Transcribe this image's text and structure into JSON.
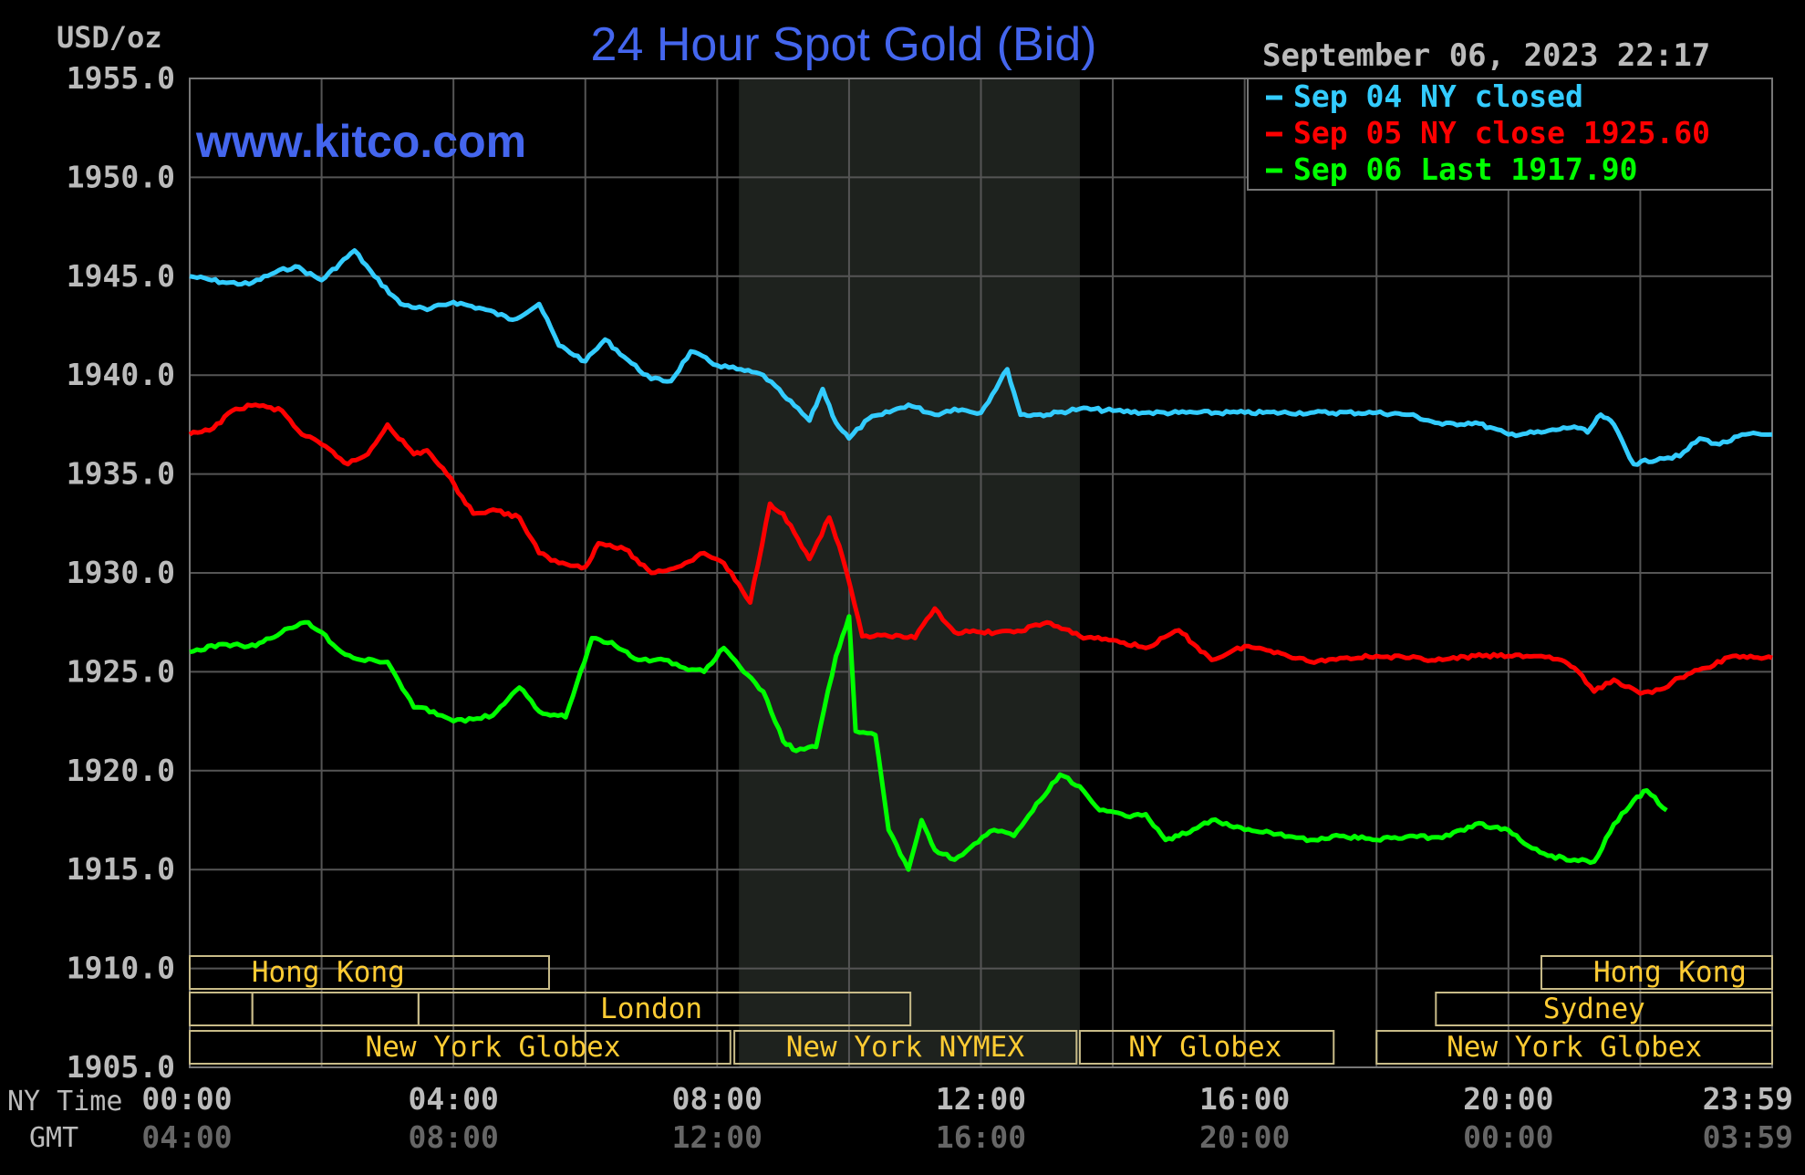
{
  "chart_data": {
    "type": "line",
    "title": "24 Hour Spot Gold (Bid)",
    "ylabel": "USD/oz",
    "website": "www.kitco.com",
    "timestamp": "September 06, 2023 22:17",
    "ylim": [
      1905.0,
      1955.0
    ],
    "y_ticks": [
      "1955.0",
      "1950.0",
      "1945.0",
      "1940.0",
      "1935.0",
      "1930.0",
      "1925.0",
      "1920.0",
      "1915.0",
      "1910.0",
      "1905.0"
    ],
    "xlim": [
      0,
      24
    ],
    "x_row_labels": {
      "ny": "NY Time",
      "gmt": "GMT"
    },
    "x_ticks_ny": [
      "00:00",
      "04:00",
      "08:00",
      "12:00",
      "16:00",
      "20:00",
      "23:59"
    ],
    "x_ticks_gmt": [
      "04:00",
      "08:00",
      "12:00",
      "16:00",
      "20:00",
      "00:00",
      "03:59"
    ],
    "x_tick_hours": [
      0,
      4,
      8,
      12,
      16,
      20,
      24
    ],
    "grid": true,
    "legend_placement": "top-right",
    "highlight_band_hours": [
      8.33,
      13.5
    ],
    "series": [
      {
        "name": "Sep 04 NY closed",
        "color": "#33ccff",
        "x": [
          0,
          0.5,
          0.9,
          1.3,
          1.6,
          2.0,
          2.5,
          2.8,
          3.2,
          3.6,
          4.0,
          4.5,
          4.9,
          5.3,
          5.6,
          6.0,
          6.3,
          6.7,
          7.0,
          7.3,
          7.6,
          8.0,
          8.3,
          8.7,
          9.0,
          9.4,
          9.6,
          9.8,
          10.0,
          10.3,
          10.5,
          10.9,
          11.3,
          11.6,
          12.0,
          12.4,
          12.6,
          12.8,
          13.0,
          13.5,
          14.0,
          14.5,
          15.0,
          16.0,
          17.0,
          18.0,
          18.5,
          19.0,
          19.5,
          20.0,
          20.5,
          21.0,
          21.2,
          21.4,
          21.6,
          21.9,
          22.3,
          22.6,
          22.9,
          23.2,
          23.6,
          24.0
        ],
        "values": [
          1945.0,
          1944.7,
          1944.6,
          1945.2,
          1945.5,
          1944.8,
          1946.3,
          1945.0,
          1943.6,
          1943.3,
          1943.7,
          1943.3,
          1942.8,
          1943.6,
          1941.5,
          1940.7,
          1941.8,
          1940.6,
          1939.8,
          1939.7,
          1941.2,
          1940.5,
          1940.3,
          1940.0,
          1939.0,
          1937.7,
          1939.3,
          1937.6,
          1936.8,
          1937.8,
          1938.0,
          1938.5,
          1938.0,
          1938.3,
          1938.1,
          1940.3,
          1938.0,
          1938.0,
          1938.0,
          1938.3,
          1938.2,
          1938.1,
          1938.1,
          1938.1,
          1938.1,
          1938.1,
          1938.0,
          1937.5,
          1937.6,
          1937.0,
          1937.1,
          1937.4,
          1937.1,
          1938.0,
          1937.5,
          1935.5,
          1935.8,
          1935.9,
          1936.8,
          1936.5,
          1937.0,
          1937.0
        ]
      },
      {
        "name": "Sep 05 NY close 1925.60",
        "color": "#ff0000",
        "x": [
          0,
          0.3,
          0.7,
          1.0,
          1.4,
          1.7,
          2.0,
          2.4,
          2.7,
          3.0,
          3.4,
          3.6,
          3.9,
          4.3,
          4.6,
          5.0,
          5.3,
          5.6,
          6.0,
          6.2,
          6.6,
          7.0,
          7.4,
          7.8,
          8.1,
          8.5,
          8.8,
          9.0,
          9.4,
          9.7,
          9.9,
          10.2,
          10.6,
          11.0,
          11.3,
          11.6,
          12.0,
          12.5,
          13.0,
          13.5,
          14.0,
          14.5,
          15.0,
          15.5,
          16.0,
          16.5,
          17.0,
          17.5,
          18.0,
          18.5,
          19.0,
          19.5,
          20.0,
          20.5,
          20.8,
          21.0,
          21.3,
          21.6,
          22.0,
          22.3,
          22.6,
          23.0,
          23.4,
          24.0
        ],
        "values": [
          1937.0,
          1937.2,
          1938.3,
          1938.5,
          1938.2,
          1937.0,
          1936.5,
          1935.5,
          1936.0,
          1937.5,
          1936.0,
          1936.2,
          1935.0,
          1933.0,
          1933.2,
          1932.8,
          1931.0,
          1930.5,
          1930.3,
          1931.5,
          1931.2,
          1930.0,
          1930.3,
          1931.0,
          1930.5,
          1928.5,
          1933.5,
          1933.0,
          1930.7,
          1932.8,
          1930.8,
          1926.8,
          1926.8,
          1926.7,
          1928.2,
          1927.0,
          1927.0,
          1927.0,
          1927.5,
          1926.8,
          1926.6,
          1926.2,
          1927.1,
          1925.6,
          1926.3,
          1926.0,
          1925.5,
          1925.7,
          1925.8,
          1925.7,
          1925.6,
          1925.8,
          1925.8,
          1925.8,
          1925.6,
          1925.2,
          1924.0,
          1924.6,
          1923.9,
          1924.1,
          1924.7,
          1925.2,
          1925.8,
          1925.7
        ]
      },
      {
        "name": "Sep 06 Last 1917.90",
        "color": "#00ff00",
        "x": [
          0,
          0.5,
          1.0,
          1.5,
          1.8,
          2.0,
          2.3,
          2.6,
          3.0,
          3.4,
          3.7,
          4.0,
          4.3,
          4.6,
          5.0,
          5.3,
          5.7,
          6.1,
          6.4,
          6.8,
          7.2,
          7.5,
          7.8,
          8.1,
          8.4,
          8.7,
          9.0,
          9.2,
          9.5,
          9.8,
          10.0,
          10.1,
          10.4,
          10.6,
          10.9,
          11.1,
          11.3,
          11.6,
          11.9,
          12.2,
          12.5,
          12.9,
          13.2,
          13.5,
          13.8,
          14.2,
          14.5,
          14.8,
          15.0,
          15.5,
          16.0,
          16.5,
          17.0,
          17.5,
          18.0,
          18.5,
          19.0,
          19.5,
          20.0,
          20.3,
          20.6,
          21.0,
          21.3,
          21.6,
          21.9,
          22.1,
          22.4
        ],
        "values": [
          1926.0,
          1926.4,
          1926.3,
          1927.2,
          1927.5,
          1927.0,
          1926.0,
          1925.6,
          1925.5,
          1923.2,
          1923.0,
          1922.5,
          1922.6,
          1922.8,
          1924.2,
          1923.0,
          1922.7,
          1926.7,
          1926.5,
          1925.6,
          1925.6,
          1925.2,
          1925.0,
          1926.2,
          1925.0,
          1924.0,
          1921.5,
          1921.0,
          1921.2,
          1925.8,
          1927.8,
          1922.0,
          1921.8,
          1917.0,
          1915.0,
          1917.5,
          1916.0,
          1915.5,
          1916.3,
          1917.0,
          1916.7,
          1918.5,
          1919.8,
          1919.2,
          1918.0,
          1917.7,
          1917.8,
          1916.5,
          1916.7,
          1917.5,
          1917.0,
          1916.8,
          1916.5,
          1916.7,
          1916.5,
          1916.7,
          1916.6,
          1917.3,
          1917.0,
          1916.2,
          1915.7,
          1915.5,
          1915.4,
          1917.3,
          1918.5,
          1919.0,
          1918.0
        ]
      }
    ],
    "sessions": [
      {
        "label": "Hong Kong",
        "row": 0,
        "start": 0,
        "end": 5.45,
        "text_center": 2.1
      },
      {
        "label": "",
        "row": 1,
        "start": 0,
        "end": 0.95
      },
      {
        "label": "",
        "row": 1,
        "start": 0.95,
        "end": 3.47
      },
      {
        "label": "London",
        "row": 1,
        "start": 3.47,
        "end": 10.93,
        "text_center": 7.0
      },
      {
        "label": "",
        "row": 2,
        "start": 0,
        "end": 6.0
      },
      {
        "label": "New York Globex",
        "row": 2,
        "start": 0,
        "end": 8.2,
        "text_center": 4.6
      },
      {
        "label": "New York NYMEX",
        "row": 2,
        "start": 8.26,
        "end": 13.45,
        "text_center": 10.85
      },
      {
        "label": "NY Globex",
        "row": 2,
        "start": 13.5,
        "end": 17.35,
        "text_center": 15.4
      },
      {
        "label": "Hong Kong",
        "row": 0,
        "start": 20.5,
        "end": 24,
        "text_center": 22.45
      },
      {
        "label": "Sydney",
        "row": 1,
        "start": 18.9,
        "end": 24,
        "text_center": 21.3
      },
      {
        "label": "New York Globex",
        "row": 2,
        "start": 18.0,
        "end": 24,
        "text_center": 21.0
      }
    ]
  },
  "colors": {
    "title": "#4466ee",
    "website": "#4466ee",
    "grid": "#555555",
    "band": "#1e221e",
    "session_border": "#c8bb88",
    "session_text": "#ffcc33",
    "axis_text": "#bbbbbb",
    "gmt_text": "#666666"
  }
}
